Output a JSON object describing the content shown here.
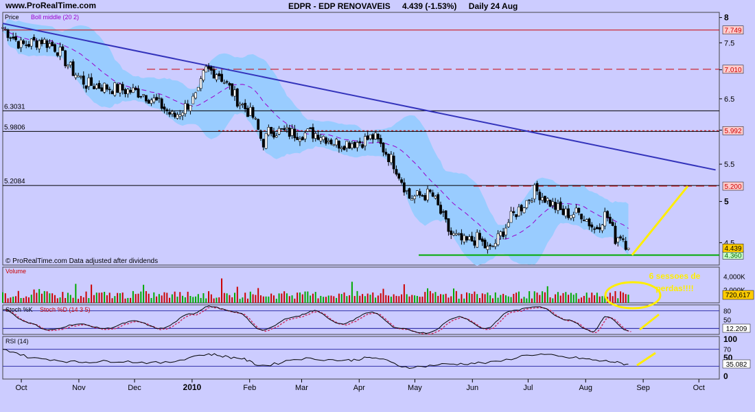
{
  "header": {
    "site": "www.ProRealTime.com",
    "ticker": "EDPR - EDP RENOVAVEIS",
    "quote": "4.439 (-1.53%)",
    "period": "Daily 24 Aug"
  },
  "colors": {
    "background": "#ccccff",
    "bollinger_band": "#99ccff",
    "boll_middle": "#9900cc",
    "downtrend_line": "#3333bb",
    "resistance_red": "#cc0000",
    "support_green": "#00aa00",
    "annotation_yellow": "#ffee00",
    "candle_up": "#00aa00",
    "candle_down": "#cc0000"
  },
  "chart_data": [
    {
      "type": "candlestick",
      "panel": "price",
      "legend_price": "Price",
      "legend_indicator": "Boll middle (20 2)",
      "credit": "© ProRealTime.com Data adjusted after dividends",
      "y_scale": "log",
      "ylim": [
        4.25,
        8.05
      ],
      "y_ticks": [
        "8",
        "7.5",
        "7",
        "6.5",
        "6",
        "5.5",
        "5",
        "4.5"
      ],
      "x_labels": [
        "Oct",
        "Nov",
        "Dec",
        "2010",
        "Feb",
        "Mar",
        "Apr",
        "May",
        "Jun",
        "Jul",
        "Aug",
        "Sep",
        "Oct"
      ],
      "last_close": 4.439,
      "close_path": [
        {
          "date": "2009-09-21",
          "close": 7.8
        },
        {
          "date": "2009-10-01",
          "close": 7.45
        },
        {
          "date": "2009-10-12",
          "close": 7.55
        },
        {
          "date": "2009-10-20",
          "close": 7.4
        },
        {
          "date": "2009-10-28",
          "close": 7.0
        },
        {
          "date": "2009-11-05",
          "close": 6.75
        },
        {
          "date": "2009-11-15",
          "close": 6.7
        },
        {
          "date": "2009-11-25",
          "close": 6.65
        },
        {
          "date": "2009-12-05",
          "close": 6.6
        },
        {
          "date": "2009-12-15",
          "close": 6.4
        },
        {
          "date": "2009-12-22",
          "close": 6.2
        },
        {
          "date": "2010-01-04",
          "close": 6.55
        },
        {
          "date": "2010-01-08",
          "close": 7.0
        },
        {
          "date": "2010-01-15",
          "close": 6.95
        },
        {
          "date": "2010-01-25",
          "close": 6.5
        },
        {
          "date": "2010-02-03",
          "close": 6.2
        },
        {
          "date": "2010-02-08",
          "close": 5.8
        },
        {
          "date": "2010-02-12",
          "close": 6.0
        },
        {
          "date": "2010-02-25",
          "close": 5.95
        },
        {
          "date": "2010-03-10",
          "close": 5.95
        },
        {
          "date": "2010-03-20",
          "close": 5.8
        },
        {
          "date": "2010-04-01",
          "close": 5.82
        },
        {
          "date": "2010-04-09",
          "close": 5.9
        },
        {
          "date": "2010-04-20",
          "close": 5.5
        },
        {
          "date": "2010-04-28",
          "close": 5.05
        },
        {
          "date": "2010-05-10",
          "close": 5.1
        },
        {
          "date": "2010-05-20",
          "close": 4.6
        },
        {
          "date": "2010-05-28",
          "close": 4.5
        },
        {
          "date": "2010-06-04",
          "close": 4.55
        },
        {
          "date": "2010-06-10",
          "close": 4.4
        },
        {
          "date": "2010-06-15",
          "close": 4.55
        },
        {
          "date": "2010-06-22",
          "close": 4.8
        },
        {
          "date": "2010-06-30",
          "close": 5.0
        },
        {
          "date": "2010-07-05",
          "close": 5.15
        },
        {
          "date": "2010-07-12",
          "close": 5.0
        },
        {
          "date": "2010-07-20",
          "close": 4.85
        },
        {
          "date": "2010-07-30",
          "close": 4.85
        },
        {
          "date": "2010-08-06",
          "close": 4.65
        },
        {
          "date": "2010-08-12",
          "close": 4.85
        },
        {
          "date": "2010-08-17",
          "close": 4.55
        },
        {
          "date": "2010-08-20",
          "close": 4.6
        },
        {
          "date": "2010-08-24",
          "close": 4.439
        }
      ],
      "support_line": {
        "value": 4.36,
        "label": "4.360"
      },
      "resistance_lines": [
        {
          "value": 7.749,
          "label": "7.749",
          "style": "solid"
        },
        {
          "value": 7.01,
          "label": "7.010",
          "style": "dashed"
        },
        {
          "value": 5.992,
          "label": "5.992",
          "style": "dotted"
        },
        {
          "value": 5.2,
          "label": "5.200",
          "style": "dashed"
        }
      ],
      "horizontal_levels": [
        {
          "value": 6.3031,
          "label": "6.3031"
        },
        {
          "value": 5.9806,
          "label": "5.9806"
        },
        {
          "value": 5.2084,
          "label": "5.2084"
        }
      ],
      "trendline": {
        "from": {
          "date": "2009-09-21",
          "value": 7.88
        },
        "to": {
          "date": "2010-10-10",
          "value": 5.42
        }
      },
      "projection_arrow": {
        "from": {
          "date": "2010-08-26",
          "value": 4.36
        },
        "to": {
          "date": "2010-09-25",
          "value": 5.2
        }
      }
    },
    {
      "type": "bar",
      "panel": "volume",
      "title": "Volume",
      "y_ticks": [
        "4,000K",
        "2,000K"
      ],
      "ylim": [
        0,
        5000
      ],
      "last_value": "720,617",
      "annotation": "6 sessoes de perdas!!!!"
    },
    {
      "type": "line",
      "panel": "stochastic",
      "title_k": "Stoch %K",
      "title_d": "Stoch %D (14 3 5)",
      "ylim": [
        0,
        100
      ],
      "levels": [
        "80",
        "20"
      ],
      "y_ticks": [
        "50"
      ],
      "last_value": "12.209",
      "path": [
        {
          "date": "2009-09-21",
          "value": 85
        },
        {
          "date": "2009-10-05",
          "value": 40
        },
        {
          "date": "2009-10-15",
          "value": 15
        },
        {
          "date": "2009-11-01",
          "value": 35
        },
        {
          "date": "2009-11-15",
          "value": 20
        },
        {
          "date": "2009-12-01",
          "value": 45
        },
        {
          "date": "2009-12-15",
          "value": 20
        },
        {
          "date": "2010-01-01",
          "value": 70
        },
        {
          "date": "2010-01-10",
          "value": 95
        },
        {
          "date": "2010-01-25",
          "value": 75
        },
        {
          "date": "2010-02-08",
          "value": 15
        },
        {
          "date": "2010-02-25",
          "value": 60
        },
        {
          "date": "2010-03-08",
          "value": 80
        },
        {
          "date": "2010-03-22",
          "value": 35
        },
        {
          "date": "2010-04-08",
          "value": 75
        },
        {
          "date": "2010-04-22",
          "value": 20
        },
        {
          "date": "2010-05-07",
          "value": 5
        },
        {
          "date": "2010-05-25",
          "value": 60
        },
        {
          "date": "2010-06-08",
          "value": 20
        },
        {
          "date": "2010-06-22",
          "value": 80
        },
        {
          "date": "2010-07-06",
          "value": 95
        },
        {
          "date": "2010-07-22",
          "value": 50
        },
        {
          "date": "2010-08-05",
          "value": 10
        },
        {
          "date": "2010-08-12",
          "value": 60
        },
        {
          "date": "2010-08-24",
          "value": 12.209
        }
      ]
    },
    {
      "type": "line",
      "panel": "rsi",
      "title": "RSI (14)",
      "ylim": [
        0,
        100
      ],
      "y_ticks": [
        "100",
        "50",
        "0"
      ],
      "levels": [
        "70"
      ],
      "last_value": "35.082",
      "path": [
        {
          "date": "2009-09-21",
          "value": 68
        },
        {
          "date": "2009-10-10",
          "value": 48
        },
        {
          "date": "2009-11-01",
          "value": 40
        },
        {
          "date": "2009-11-20",
          "value": 42
        },
        {
          "date": "2009-12-15",
          "value": 38
        },
        {
          "date": "2010-01-10",
          "value": 58
        },
        {
          "date": "2010-01-25",
          "value": 50
        },
        {
          "date": "2010-02-08",
          "value": 32
        },
        {
          "date": "2010-03-01",
          "value": 48
        },
        {
          "date": "2010-03-25",
          "value": 44
        },
        {
          "date": "2010-04-08",
          "value": 50
        },
        {
          "date": "2010-04-28",
          "value": 28
        },
        {
          "date": "2010-05-20",
          "value": 35
        },
        {
          "date": "2010-06-08",
          "value": 38
        },
        {
          "date": "2010-07-06",
          "value": 58
        },
        {
          "date": "2010-07-25",
          "value": 50
        },
        {
          "date": "2010-08-12",
          "value": 42
        },
        {
          "date": "2010-08-24",
          "value": 35.082
        }
      ]
    }
  ]
}
